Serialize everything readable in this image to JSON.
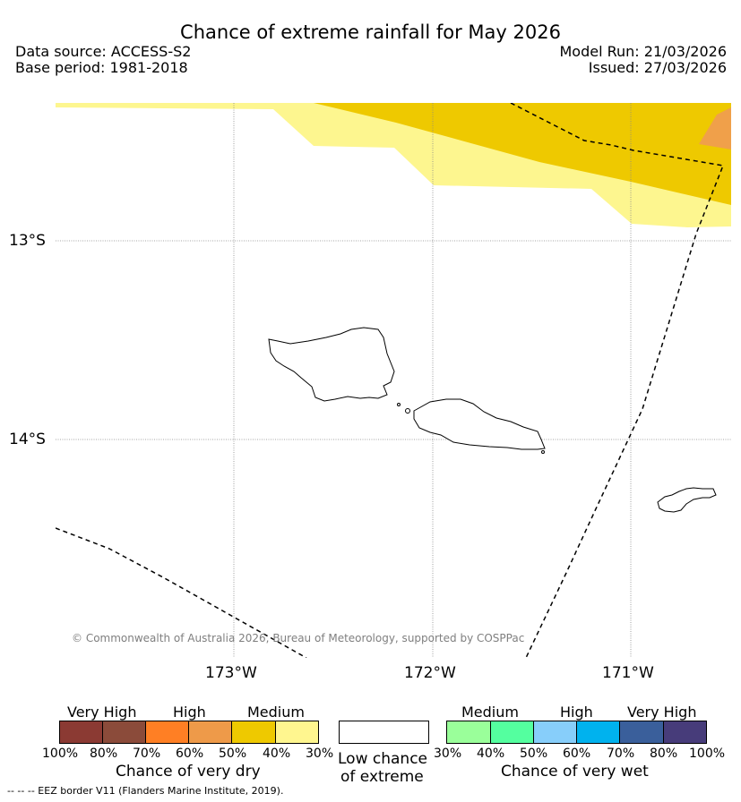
{
  "header": {
    "title": "Chance of extreme rainfall for May 2026",
    "data_source": "Data source: ACCESS-S2",
    "base_period": "Base period: 1981-2018",
    "model_run": "Model Run: 21/03/2026",
    "issued": "Issued: 27/03/2026"
  },
  "map": {
    "lat_labels": [
      "13°S",
      "14°S"
    ],
    "lon_labels": [
      "173°W",
      "172°W",
      "171°W"
    ],
    "copyright": "© Commonwealth of Australia 2026, Bureau of Meteorology, supported by COSPPac",
    "colors": {
      "light_yellow": "#fdf68f",
      "gold": "#eec900",
      "orange": "#f0a04a"
    }
  },
  "legend": {
    "dry": {
      "headers": [
        "Very High",
        "High",
        "Medium"
      ],
      "ticks": [
        "100%",
        "80%",
        "70%",
        "60%",
        "50%",
        "40%",
        "30%"
      ],
      "caption": "Chance of very dry",
      "colors": [
        "#8b3a33",
        "#8b4b3a",
        "#ff7f24",
        "#ee9a49",
        "#eec900",
        "#fff68f"
      ]
    },
    "low": {
      "caption_line1": "Low chance",
      "caption_line2": "of extreme"
    },
    "wet": {
      "headers": [
        "Medium",
        "High",
        "Very High"
      ],
      "ticks": [
        "30%",
        "40%",
        "50%",
        "60%",
        "70%",
        "80%",
        "100%"
      ],
      "caption": "Chance of very wet",
      "colors": [
        "#9aff9a",
        "#54ff9f",
        "#87cefa",
        "#00b2ee",
        "#3a5f9b",
        "#473c7a"
      ]
    },
    "eez_note": "--  --  -- EEZ border V11 (Flanders Marine Institute, 2019)."
  }
}
